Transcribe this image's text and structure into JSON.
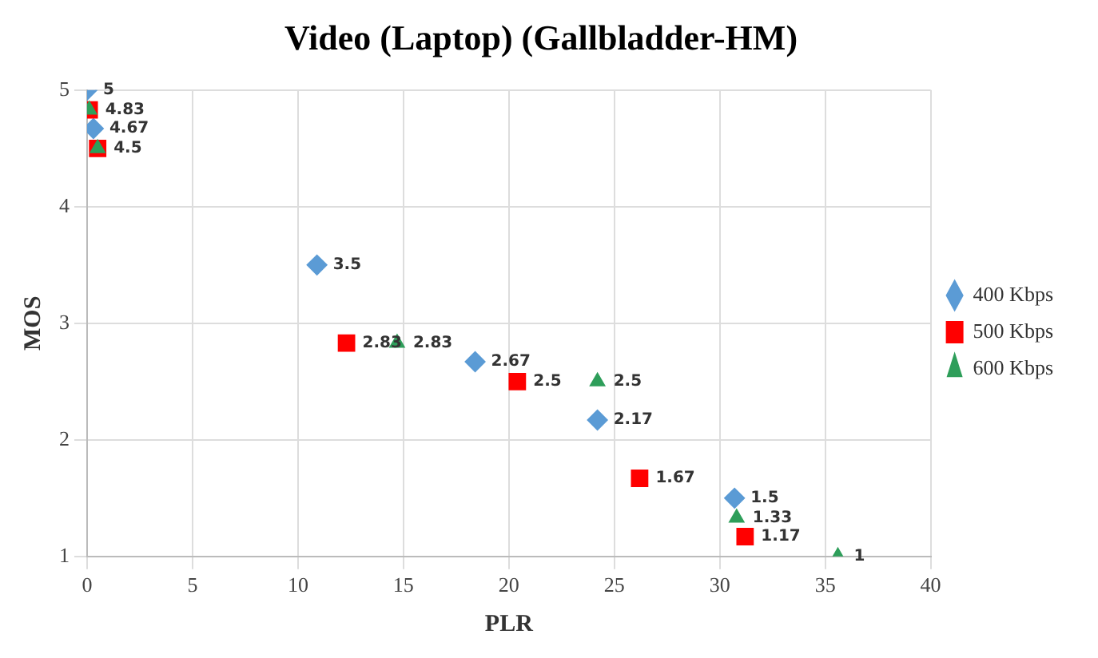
{
  "chart_data": {
    "type": "scatter",
    "title": "Video (Laptop) (Gallbladder-HM)",
    "xlabel": "PLR",
    "ylabel": "MOS",
    "series": [
      {
        "name": "400 Kbps",
        "color": "#5b9bd5",
        "marker": "diamond",
        "x": [
          0,
          0.3,
          10.9,
          18.4,
          24.2,
          30.7
        ],
        "values": [
          5,
          4.67,
          3.5,
          2.67,
          2.17,
          1.5
        ],
        "value_labels": [
          "5",
          "4.67",
          "3.5",
          "2.67",
          "2.17",
          "1.5"
        ]
      },
      {
        "name": "500 Kbps",
        "color": "#ff0000",
        "marker": "square",
        "x": [
          0.1,
          0.5,
          12.3,
          20.4,
          26.2,
          31.2
        ],
        "values": [
          4.83,
          4.5,
          2.83,
          2.5,
          1.67,
          1.17
        ],
        "value_labels": [
          "4.83",
          "4.5",
          "2.83",
          "2.5",
          "1.67",
          "1.17"
        ]
      },
      {
        "name": "600 Kbps",
        "color": "#2e9e5a",
        "marker": "triangle",
        "x": [
          0.1,
          0.5,
          14.7,
          24.2,
          30.8,
          35.6
        ],
        "values": [
          4.83,
          4.5,
          2.83,
          2.5,
          1.33,
          1
        ],
        "value_labels": [
          null,
          null,
          "2.83",
          "2.5",
          "1.33",
          "1"
        ]
      }
    ],
    "xlim": [
      0,
      40
    ],
    "xticks": [
      0,
      5,
      10,
      15,
      20,
      25,
      30,
      35,
      40
    ],
    "ylim": [
      1,
      5
    ],
    "yticks": [
      1,
      2,
      3,
      4,
      5
    ],
    "grid": true,
    "legend": "right"
  }
}
